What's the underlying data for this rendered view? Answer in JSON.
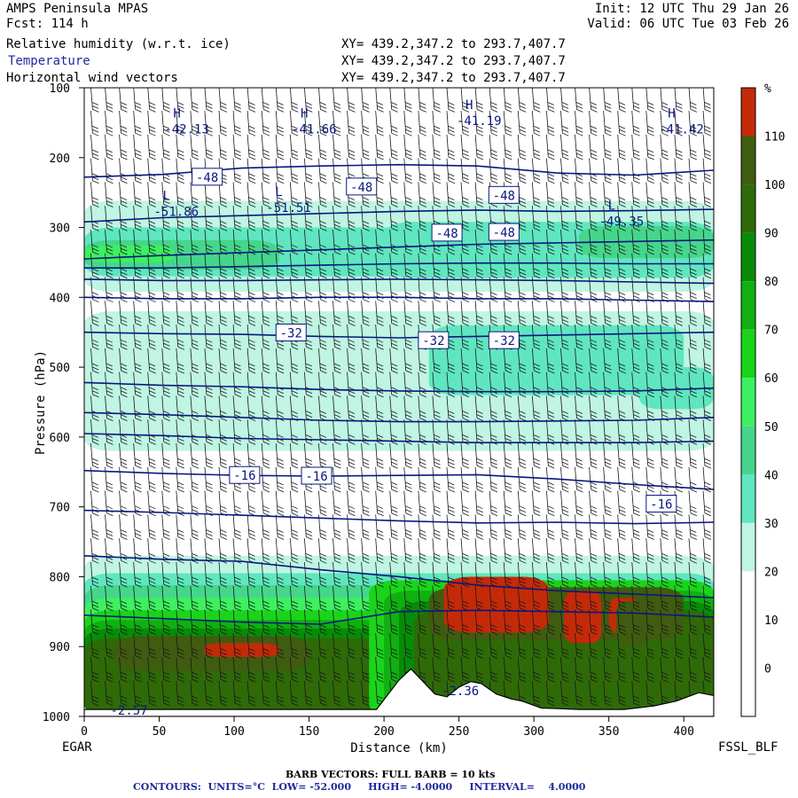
{
  "header": {
    "model": "AMPS Peninsula MPAS",
    "forecast": "Fcst:  114 h",
    "init": "Init: 12 UTC Thu 29 Jan 26",
    "valid": "Valid: 06 UTC Tue 03 Feb 26",
    "field1": "Relative humidity (w.r.t. ice)",
    "field2": "Temperature",
    "field3": "Horizontal wind vectors",
    "xy1": "XY= 439.2,347.2 to 293.7,407.7",
    "xy2": "XY= 439.2,347.2 to 293.7,407.7",
    "xy3": "XY= 439.2,347.2 to 293.7,407.7"
  },
  "footer": {
    "left_station": "EGAR",
    "right_station": "FSSL_BLF",
    "barb_note": "BARB VECTORS:  FULL BARB = 10 kts",
    "contours_note": "CONTOURS:  UNITS=°C  LOW= -52.000     HIGH= -4.0000     INTERVAL=    4.0000"
  },
  "chart_data": {
    "type": "cross-section",
    "xlabel": "Distance (km)",
    "ylabel": "Pressure (hPa)",
    "xlim": [
      0,
      420
    ],
    "ylim": [
      1000,
      100
    ],
    "x_ticks": [
      0,
      50,
      100,
      150,
      200,
      250,
      300,
      350,
      400
    ],
    "x_tick_labels": [
      "0",
      "50",
      "100",
      "150",
      "200",
      "250",
      "300",
      "350",
      "400"
    ],
    "y_ticks": [
      100,
      200,
      300,
      400,
      500,
      600,
      700,
      800,
      900,
      1000
    ],
    "y_tick_labels": [
      "100",
      "200",
      "300",
      "400",
      "500",
      "600",
      "700",
      "800",
      "900",
      "1000"
    ],
    "colorbar": {
      "unit": "%",
      "levels": [
        0,
        10,
        20,
        30,
        40,
        50,
        60,
        70,
        80,
        90,
        100,
        110
      ],
      "labels": [
        "0",
        "10",
        "20",
        "30",
        "40",
        "50",
        "60",
        "70",
        "80",
        "90",
        "100",
        "110"
      ],
      "colors": [
        "#ffffff",
        "#ffffff",
        "#ffffff",
        "#bff5e2",
        "#5fe6c0",
        "#45d68c",
        "#3df060",
        "#1ad41a",
        "#0fb00f",
        "#078c07",
        "#2f6a08",
        "#3f5c10",
        "#c42a08"
      ]
    },
    "terrain": [
      [
        0,
        990
      ],
      [
        50,
        990
      ],
      [
        100,
        990
      ],
      [
        150,
        990
      ],
      [
        195,
        990
      ],
      [
        210,
        948
      ],
      [
        218,
        932
      ],
      [
        226,
        950
      ],
      [
        234,
        968
      ],
      [
        242,
        972
      ],
      [
        250,
        958
      ],
      [
        258,
        950
      ],
      [
        265,
        953
      ],
      [
        275,
        968
      ],
      [
        285,
        975
      ],
      [
        292,
        978
      ],
      [
        305,
        988
      ],
      [
        330,
        990
      ],
      [
        360,
        990
      ],
      [
        380,
        985
      ],
      [
        395,
        978
      ],
      [
        410,
        966
      ],
      [
        420,
        970
      ]
    ],
    "temperature_contours": [
      {
        "level": -48,
        "p": [
          228,
          224,
          215,
          212,
          210,
          212,
          222,
          225,
          218
        ]
      },
      {
        "level": -48,
        "p": [
          292,
          286,
          283,
          280,
          277,
          275,
          277,
          276,
          274
        ]
      },
      {
        "level": -48,
        "p": [
          345,
          340,
          336,
          332,
          328,
          324,
          322,
          320,
          318
        ]
      },
      {
        "level": -44,
        "p": [
          358,
          358,
          356,
          354,
          352,
          351,
          351,
          352,
          352
        ]
      },
      {
        "level": -40,
        "p": [
          374,
          376,
          376,
          375,
          374,
          375,
          376,
          378,
          380
        ]
      },
      {
        "level": -36,
        "p": [
          400,
          402,
          402,
          400,
          400,
          402,
          402,
          404,
          406
        ]
      },
      {
        "level": -32,
        "p": [
          450,
          452,
          453,
          456,
          458,
          456,
          454,
          452,
          450
        ]
      },
      {
        "level": -28,
        "p": [
          522,
          526,
          528,
          532,
          534,
          535,
          535,
          534,
          530
        ]
      },
      {
        "level": -24,
        "p": [
          565,
          568,
          572,
          576,
          578,
          578,
          577,
          576,
          572
        ]
      },
      {
        "level": -20,
        "p": [
          595,
          598,
          602,
          604,
          606,
          608,
          608,
          608,
          606
        ]
      },
      {
        "level": -16,
        "p": [
          648,
          652,
          655,
          656,
          655,
          654,
          660,
          668,
          675
        ]
      },
      {
        "level": -12,
        "p": [
          705,
          708,
          712,
          716,
          720,
          723,
          722,
          724,
          722
        ]
      },
      {
        "level": -8,
        "p": [
          770,
          775,
          778,
          790,
          800,
          812,
          820,
          825,
          830
        ]
      },
      {
        "level": -4,
        "p": [
          855,
          860,
          865,
          868,
          850,
          848,
          850,
          852,
          858
        ]
      }
    ],
    "contour_labels": [
      {
        "text": "-48",
        "x": 82,
        "p": 228
      },
      {
        "text": "-48",
        "x": 185,
        "p": 242
      },
      {
        "text": "-48",
        "x": 280,
        "p": 254
      },
      {
        "text": "-48",
        "x": 242,
        "p": 308
      },
      {
        "text": "-48",
        "x": 280,
        "p": 307
      },
      {
        "text": "-32",
        "x": 138,
        "p": 451
      },
      {
        "text": "-32",
        "x": 233,
        "p": 462
      },
      {
        "text": "-32",
        "x": 280,
        "p": 462
      },
      {
        "text": "-16",
        "x": 107,
        "p": 655
      },
      {
        "text": "-16",
        "x": 155,
        "p": 656
      },
      {
        "text": "-16",
        "x": 385,
        "p": 696
      }
    ],
    "extrema": [
      {
        "symbol": "H",
        "value": "-42.13",
        "x": 70,
        "p": 158
      },
      {
        "symbol": "H",
        "value": "-41.66",
        "x": 155,
        "p": 158
      },
      {
        "symbol": "H",
        "value": "-41.19",
        "x": 265,
        "p": 146
      },
      {
        "symbol": "H",
        "value": "-41.42",
        "x": 400,
        "p": 158
      },
      {
        "symbol": "L",
        "value": "-51.86",
        "x": 63,
        "p": 276
      },
      {
        "symbol": "L",
        "value": "-51.51",
        "x": 138,
        "p": 270
      },
      {
        "symbol": "L",
        "value": "-49.35",
        "x": 360,
        "p": 290
      },
      {
        "symbol": "",
        "value": "-2.57",
        "x": 34,
        "p": 990
      },
      {
        "symbol": "",
        "value": "-2.36",
        "x": 255,
        "p": 962
      }
    ]
  }
}
